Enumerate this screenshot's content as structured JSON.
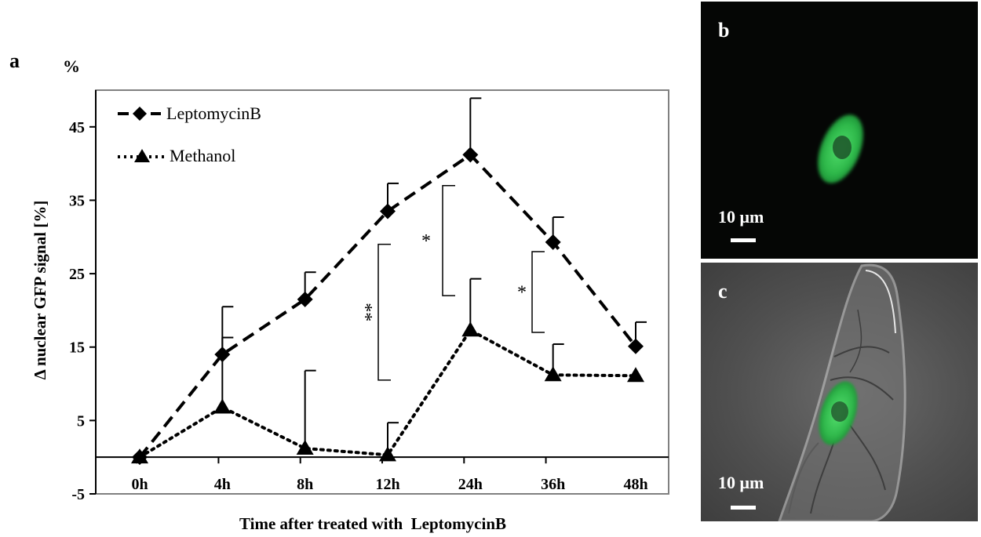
{
  "panel_a": {
    "letter": "a",
    "percent_label": "%"
  },
  "chart_data": {
    "type": "line",
    "categories": [
      "0h",
      "4h",
      "8h",
      "12h",
      "24h",
      "36h",
      "48h"
    ],
    "xlabel": "Time after treated with  LeptomycinB",
    "ylabel": "Δ nuclear GFP signal [%]",
    "ylim": [
      -5,
      50
    ],
    "yticks": [
      -5,
      5,
      15,
      25,
      35,
      45
    ],
    "legend_position": "top-left",
    "grid": false,
    "series": [
      {
        "name": "LeptomycinB",
        "values": [
          0,
          14,
          21.5,
          33.5,
          41.2,
          29.3,
          15.1
        ],
        "error_upper": [
          0,
          6.5,
          3.7,
          3.8,
          7.7,
          3.4,
          3.3
        ],
        "marker": "diamond",
        "line_style": "dashed",
        "color": "#000000"
      },
      {
        "name": "Methanol",
        "values": [
          0,
          6.8,
          1.2,
          0.3,
          17.3,
          11.2,
          11.1
        ],
        "error_upper": [
          0,
          9.5,
          10.6,
          4.4,
          7,
          4.2,
          0
        ],
        "marker": "triangle",
        "line_style": "dotted",
        "color": "#000000"
      }
    ],
    "significance": [
      {
        "label": "**",
        "between": [
          "12h",
          "24h"
        ],
        "y_low": 10.5,
        "y_high": 29
      },
      {
        "label": "*",
        "between": [
          "12h",
          "24h"
        ],
        "y_low": 22,
        "y_high": 37
      },
      {
        "label": "*",
        "between": [
          "24h",
          "36h"
        ],
        "y_low": 17,
        "y_high": 28
      }
    ]
  },
  "panel_b": {
    "letter": "b",
    "scale_label": "10 μm"
  },
  "panel_c": {
    "letter": "c",
    "scale_label": "10 μm"
  }
}
